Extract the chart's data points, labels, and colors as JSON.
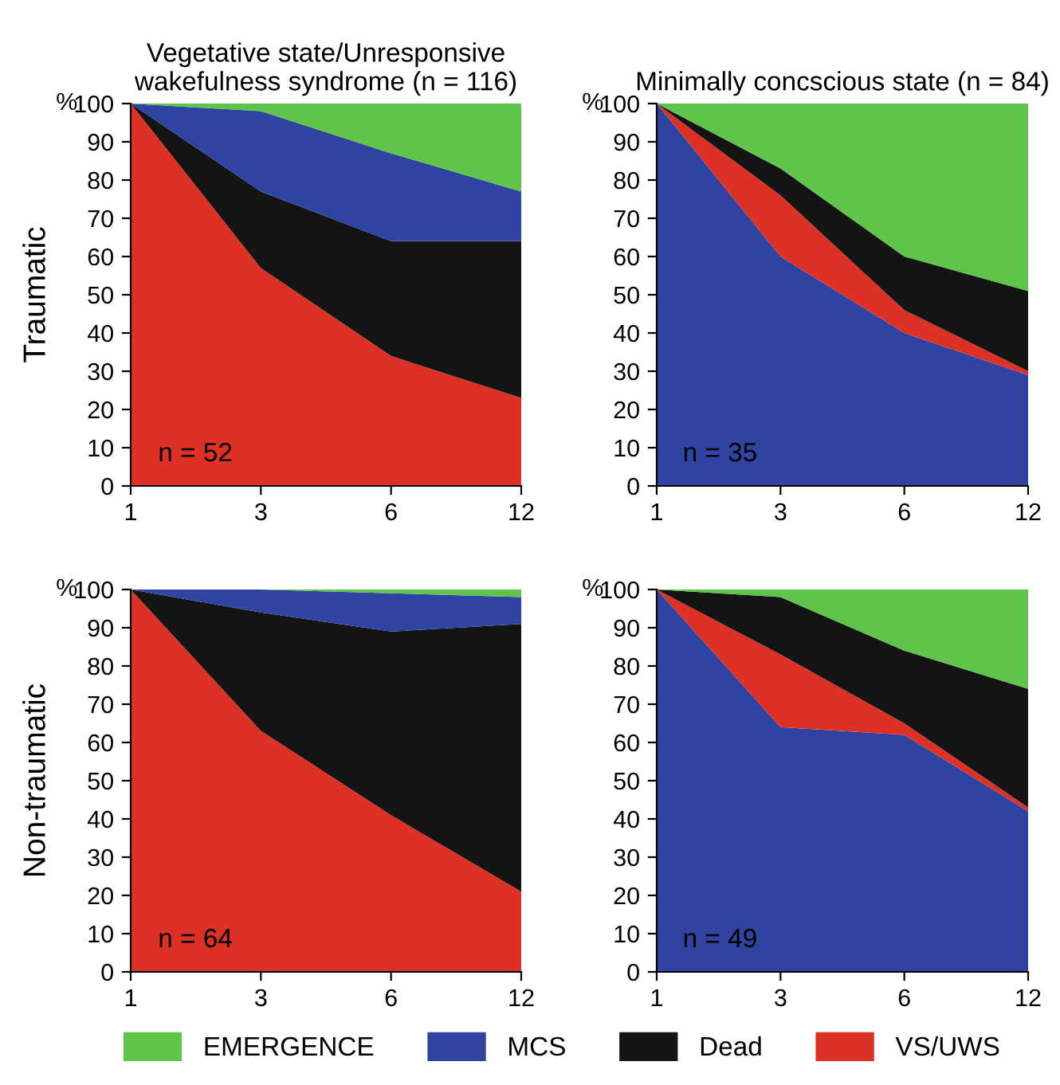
{
  "chart_data": [
    {
      "type": "area",
      "stacked": true,
      "title": "Vegetative state/Unresponsive\nwakefulness syndrome (n = 116)",
      "ylabel": "%",
      "annotations": [
        "n = 52",
        "Traumatic"
      ],
      "categories": [
        "1",
        "3",
        "6",
        "12"
      ],
      "ylim": [
        0,
        100
      ],
      "yticks": [
        0,
        10,
        20,
        30,
        40,
        50,
        60,
        70,
        80,
        90,
        100
      ],
      "legend": "bottom",
      "series": [
        {
          "name": "VS/UWS",
          "color": "#dc3124",
          "values": [
            100,
            57,
            34,
            23
          ]
        },
        {
          "name": "Dead",
          "color": "#141414",
          "values": [
            0,
            20,
            30,
            41
          ]
        },
        {
          "name": "MCS",
          "color": "#2e44a0",
          "values": [
            0,
            21,
            23,
            13
          ]
        },
        {
          "name": "EMERGENCE",
          "color": "#5ec44a",
          "values": [
            0,
            2,
            13,
            23
          ]
        }
      ]
    },
    {
      "type": "area",
      "stacked": true,
      "title": "Minimally concscious state (n = 84)",
      "ylabel": "%",
      "annotations": [
        "n = 35"
      ],
      "categories": [
        "1",
        "3",
        "6",
        "12"
      ],
      "ylim": [
        0,
        100
      ],
      "yticks": [
        0,
        10,
        20,
        30,
        40,
        50,
        60,
        70,
        80,
        90,
        100
      ],
      "series": [
        {
          "color": "#2e44a0",
          "values": [
            100,
            60,
            40,
            29
          ]
        },
        {
          "color": "#dc3124",
          "values": [
            0,
            16,
            6,
            1
          ]
        },
        {
          "color": "#141414",
          "values": [
            0,
            7,
            14,
            21
          ]
        },
        {
          "color": "#5ec44a",
          "values": [
            0,
            17,
            40,
            49
          ]
        }
      ]
    },
    {
      "type": "area",
      "stacked": true,
      "ylabel": "%",
      "annotations": [
        "n = 64",
        "Non-traumatic"
      ],
      "categories": [
        "1",
        "3",
        "6",
        "12"
      ],
      "ylim": [
        0,
        100
      ],
      "yticks": [
        0,
        10,
        20,
        30,
        40,
        50,
        60,
        70,
        80,
        90,
        100
      ],
      "series": [
        {
          "color": "#dc3124",
          "values": [
            100,
            63,
            41,
            21
          ]
        },
        {
          "color": "#141414",
          "values": [
            0,
            31,
            48,
            70
          ]
        },
        {
          "color": "#2e44a0",
          "values": [
            0,
            6,
            10,
            7
          ]
        },
        {
          "color": "#5ec44a",
          "values": [
            0,
            0,
            1,
            2
          ]
        }
      ]
    },
    {
      "type": "area",
      "stacked": true,
      "ylabel": "%",
      "annotations": [
        "n = 49"
      ],
      "categories": [
        "1",
        "3",
        "6",
        "12"
      ],
      "ylim": [
        0,
        100
      ],
      "yticks": [
        0,
        10,
        20,
        30,
        40,
        50,
        60,
        70,
        80,
        90,
        100
      ],
      "series": [
        {
          "color": "#2e44a0",
          "values": [
            100,
            64,
            62,
            42
          ]
        },
        {
          "color": "#dc3124",
          "values": [
            0,
            19,
            3,
            1
          ]
        },
        {
          "color": "#141414",
          "values": [
            0,
            15,
            19,
            31
          ]
        },
        {
          "color": "#5ec44a",
          "values": [
            0,
            2,
            16,
            26
          ]
        }
      ]
    }
  ]
}
